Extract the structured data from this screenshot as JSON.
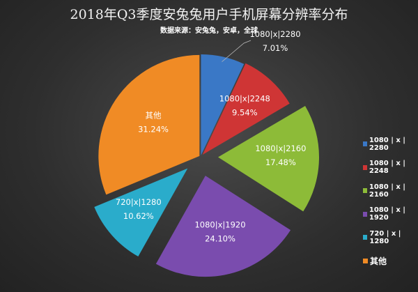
{
  "chart_data": {
    "type": "pie",
    "title": "2018年Q3季度安兔兔用户手机屏幕分辨率分布",
    "subtitle": "数据来源：安兔兔，安卓，全球",
    "categories": [
      "1080|x|2280",
      "1080|x|2248",
      "1080|x|2160",
      "1080|x|1920",
      "720|x|1280",
      "其他"
    ],
    "values": [
      7.01,
      9.54,
      17.48,
      24.1,
      10.62,
      31.24
    ],
    "value_labels": [
      "7.01%",
      "9.54%",
      "17.48%",
      "24.10%",
      "10.62%",
      "31.24%"
    ],
    "legend_labels": [
      "1080 | x | 2280",
      "1080 | x | 2248",
      "1080 | x | 2160",
      "1080 | x | 1920",
      "720 | x | 1280",
      "其他"
    ],
    "colors": [
      "#3a78c6",
      "#cf3535",
      "#8dbb38",
      "#7a4cae",
      "#2aaccb",
      "#f08b25"
    ],
    "legend_position": "right",
    "start_angle": "12 o'clock, clockwise",
    "exploded": true
  }
}
